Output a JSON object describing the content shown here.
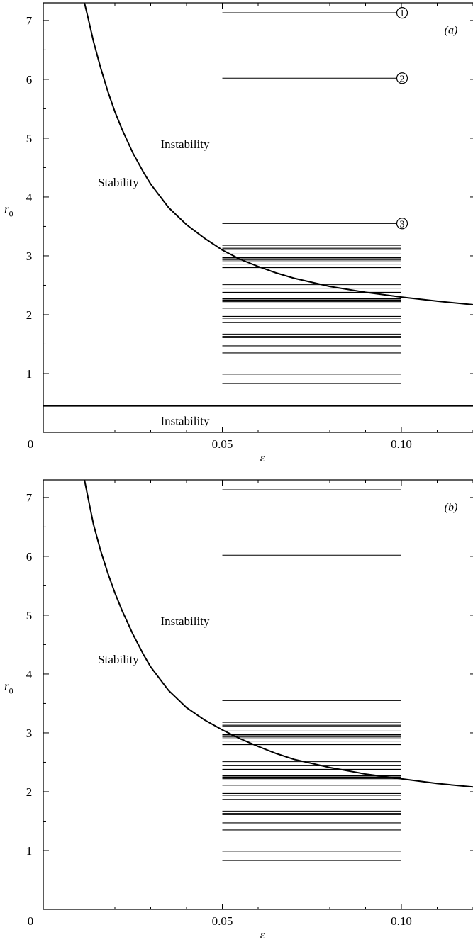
{
  "chart_data": [
    {
      "type": "line",
      "panel_label": "(a)",
      "xlabel": "ε",
      "ylabel_main": "r",
      "ylabel_sub": "0",
      "xlim": [
        0,
        0.12
      ],
      "ylim": [
        0,
        7.3
      ],
      "x_ticks": [
        0.05,
        0.1
      ],
      "x_tick_labels": [
        "0.05",
        "0.10"
      ],
      "origin_label": "0",
      "y_ticks": [
        1,
        2,
        3,
        4,
        5,
        6,
        7
      ],
      "y_tick_labels": [
        "1",
        "2",
        "3",
        "4",
        "5",
        "6",
        "7"
      ],
      "curve": {
        "x": [
          0.0115,
          0.0125,
          0.014,
          0.016,
          0.018,
          0.02,
          0.022,
          0.025,
          0.028,
          0.03,
          0.035,
          0.04,
          0.045,
          0.05,
          0.055,
          0.06,
          0.065,
          0.07,
          0.08,
          0.09,
          0.1,
          0.11,
          0.12
        ],
        "y": [
          7.3,
          7.05,
          6.65,
          6.2,
          5.8,
          5.45,
          5.15,
          4.75,
          4.42,
          4.22,
          3.82,
          3.53,
          3.3,
          3.1,
          2.94,
          2.82,
          2.71,
          2.62,
          2.48,
          2.38,
          2.3,
          2.23,
          2.17
        ]
      },
      "lower_boundary_r0": 0.45,
      "segment_x_range": [
        0.05,
        0.1
      ],
      "segments_r0": [
        7.13,
        6.02,
        3.55,
        3.18,
        3.13,
        3.11,
        3.03,
        2.97,
        2.95,
        2.93,
        2.9,
        2.86,
        2.8,
        2.51,
        2.45,
        2.38,
        2.27,
        2.25,
        2.24,
        2.22,
        2.11,
        1.97,
        1.94,
        1.87,
        1.67,
        1.63,
        1.61,
        1.47,
        1.35,
        0.99,
        0.83
      ],
      "markers": [
        {
          "label": "1",
          "r0": 7.13
        },
        {
          "label": "2",
          "r0": 6.02
        },
        {
          "label": "3",
          "r0": 3.55
        }
      ],
      "annotations": {
        "instability_upper": "Instability",
        "stability": "Stability",
        "instability_lower": "Instability"
      }
    },
    {
      "type": "line",
      "panel_label": "(b)",
      "xlabel": "ε",
      "ylabel_main": "r",
      "ylabel_sub": "0",
      "xlim": [
        0,
        0.12
      ],
      "ylim": [
        0,
        7.3
      ],
      "x_ticks": [
        0.05,
        0.1
      ],
      "x_tick_labels": [
        "0.05",
        "0.10"
      ],
      "origin_label": "0",
      "y_ticks": [
        1,
        2,
        3,
        4,
        5,
        6,
        7
      ],
      "y_tick_labels": [
        "1",
        "2",
        "3",
        "4",
        "5",
        "6",
        "7"
      ],
      "curve": {
        "x": [
          0.0115,
          0.0125,
          0.014,
          0.016,
          0.018,
          0.02,
          0.022,
          0.025,
          0.028,
          0.03,
          0.035,
          0.04,
          0.045,
          0.05,
          0.055,
          0.06,
          0.065,
          0.07,
          0.08,
          0.09,
          0.1,
          0.11,
          0.12
        ],
        "y": [
          7.3,
          7.0,
          6.55,
          6.1,
          5.72,
          5.38,
          5.08,
          4.68,
          4.33,
          4.12,
          3.72,
          3.43,
          3.22,
          3.05,
          2.9,
          2.77,
          2.65,
          2.55,
          2.41,
          2.3,
          2.22,
          2.14,
          2.08
        ]
      },
      "segment_x_range": [
        0.05,
        0.1
      ],
      "segments_r0": [
        7.13,
        6.02,
        3.55,
        3.18,
        3.13,
        3.11,
        3.03,
        2.97,
        2.95,
        2.93,
        2.9,
        2.86,
        2.8,
        2.51,
        2.45,
        2.38,
        2.27,
        2.25,
        2.24,
        2.22,
        2.11,
        1.97,
        1.94,
        1.87,
        1.67,
        1.63,
        1.61,
        1.47,
        1.35,
        0.99,
        0.83
      ],
      "annotations": {
        "instability_upper": "Instability",
        "stability": "Stability"
      }
    }
  ]
}
